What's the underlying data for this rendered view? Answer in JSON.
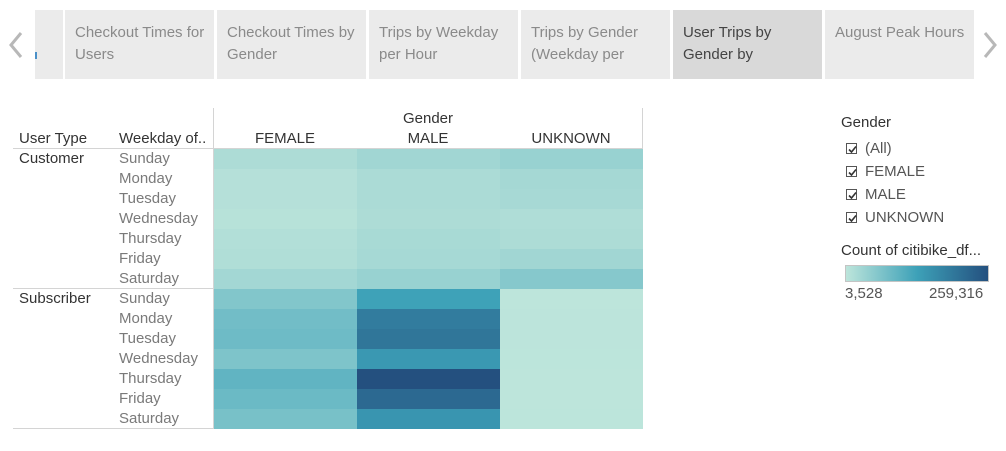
{
  "tabs": {
    "items": [
      {
        "label": "Checkout Times for Users"
      },
      {
        "label": "Checkout Times by Gender"
      },
      {
        "label": "Trips by Weekday per Hour"
      },
      {
        "label": "Trips by Gender (Weekday per"
      },
      {
        "label": "User Trips by Gender by",
        "active": true
      },
      {
        "label": "August Peak Hours"
      }
    ]
  },
  "icons": {
    "prev": "chevron-left-icon",
    "next": "chevron-right-icon",
    "check": "checkmark-icon"
  },
  "crosstab": {
    "column_group_title": "Gender",
    "row_headers": [
      "User Type",
      "Weekday of.."
    ],
    "columns": [
      "FEMALE",
      "MALE",
      "UNKNOWN"
    ],
    "user_types": [
      "Customer",
      "Subscriber"
    ],
    "weekdays": [
      "Sunday",
      "Monday",
      "Tuesday",
      "Wednesday",
      "Thursday",
      "Friday",
      "Saturday"
    ]
  },
  "chart_data": {
    "type": "heatmap",
    "title": "",
    "color_measure": "Count of citibike_df...",
    "color_range": [
      3528,
      259316
    ],
    "color_ramp": [
      "#bde5db",
      "#3da1b8",
      "#24507f"
    ],
    "rows": [
      {
        "user_type": "Customer",
        "weekday": "Sunday",
        "FEMALE": 20000,
        "MALE": 32000,
        "UNKNOWN": 40000
      },
      {
        "user_type": "Customer",
        "weekday": "Monday",
        "FEMALE": 12000,
        "MALE": 22000,
        "UNKNOWN": 28000
      },
      {
        "user_type": "Customer",
        "weekday": "Tuesday",
        "FEMALE": 12000,
        "MALE": 22000,
        "UNKNOWN": 26000
      },
      {
        "user_type": "Customer",
        "weekday": "Wednesday",
        "FEMALE": 10000,
        "MALE": 20000,
        "UNKNOWN": 18000
      },
      {
        "user_type": "Customer",
        "weekday": "Thursday",
        "FEMALE": 15000,
        "MALE": 25000,
        "UNKNOWN": 20000
      },
      {
        "user_type": "Customer",
        "weekday": "Friday",
        "FEMALE": 17000,
        "MALE": 27000,
        "UNKNOWN": 32000
      },
      {
        "user_type": "Customer",
        "weekday": "Saturday",
        "FEMALE": 30000,
        "MALE": 40000,
        "UNKNOWN": 58000
      },
      {
        "user_type": "Subscriber",
        "weekday": "Sunday",
        "FEMALE": 62000,
        "MALE": 130000,
        "UNKNOWN": 4000
      },
      {
        "user_type": "Subscriber",
        "weekday": "Monday",
        "FEMALE": 78000,
        "MALE": 190000,
        "UNKNOWN": 4500
      },
      {
        "user_type": "Subscriber",
        "weekday": "Tuesday",
        "FEMALE": 82000,
        "MALE": 200000,
        "UNKNOWN": 4800
      },
      {
        "user_type": "Subscriber",
        "weekday": "Wednesday",
        "FEMALE": 66000,
        "MALE": 145000,
        "UNKNOWN": 4200
      },
      {
        "user_type": "Subscriber",
        "weekday": "Thursday",
        "FEMALE": 95000,
        "MALE": 259316,
        "UNKNOWN": 3528
      },
      {
        "user_type": "Subscriber",
        "weekday": "Friday",
        "FEMALE": 85000,
        "MALE": 220000,
        "UNKNOWN": 4000
      },
      {
        "user_type": "Subscriber",
        "weekday": "Saturday",
        "FEMALE": 72000,
        "MALE": 150000,
        "UNKNOWN": 4300
      }
    ]
  },
  "legend": {
    "filter_title": "Gender",
    "filter_items": [
      {
        "label": "(All)",
        "checked": true
      },
      {
        "label": "FEMALE",
        "checked": true
      },
      {
        "label": "MALE",
        "checked": true
      },
      {
        "label": "UNKNOWN",
        "checked": true
      }
    ],
    "color_title": "Count of citibike_df...",
    "color_min_label": "3,528",
    "color_max_label": "259,316"
  }
}
